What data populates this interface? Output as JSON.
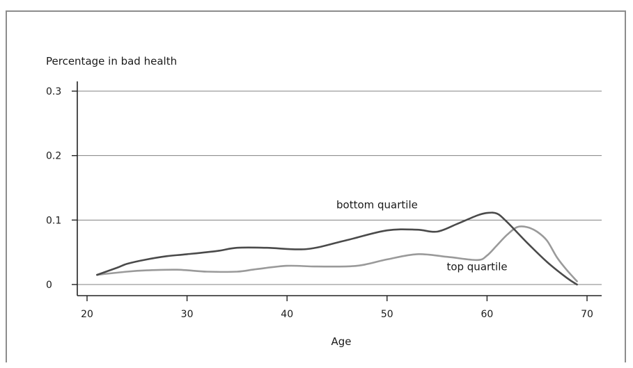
{
  "chart_data": {
    "type": "line",
    "title": "",
    "ylabel": "Percentage in bad health",
    "xlabel": "Age",
    "xlim": [
      19,
      71
    ],
    "ylim": [
      -0.015,
      0.32
    ],
    "xticks": [
      20,
      30,
      40,
      50,
      60,
      70
    ],
    "yticks": [
      0,
      0.1,
      0.2,
      0.3
    ],
    "ytick_labels": [
      "0",
      "0.1",
      "0.2",
      "0.3"
    ],
    "grid": "horizontal",
    "series": [
      {
        "name": "bottom quartile",
        "color": "#4a4a4a",
        "x": [
          21,
          23,
          24,
          26,
          28,
          30,
          33,
          35,
          38,
          42,
          46,
          50,
          53,
          55,
          57,
          59,
          60,
          61,
          62,
          64,
          66,
          68,
          69
        ],
        "y": [
          0.015,
          0.026,
          0.032,
          0.039,
          0.044,
          0.047,
          0.052,
          0.057,
          0.057,
          0.055,
          0.069,
          0.084,
          0.085,
          0.082,
          0.094,
          0.107,
          0.111,
          0.11,
          0.097,
          0.065,
          0.035,
          0.01,
          0.0
        ]
      },
      {
        "name": "top quartile",
        "color": "#9a9a9a",
        "x": [
          21,
          24,
          26,
          29,
          32,
          35,
          37,
          40,
          43,
          47,
          50,
          53,
          56,
          59,
          60,
          61,
          62,
          63,
          64,
          65,
          66,
          67,
          68,
          69
        ],
        "y": [
          0.015,
          0.02,
          0.022,
          0.023,
          0.02,
          0.02,
          0.024,
          0.029,
          0.028,
          0.029,
          0.039,
          0.047,
          0.043,
          0.038,
          0.045,
          0.061,
          0.077,
          0.089,
          0.089,
          0.082,
          0.068,
          0.042,
          0.022,
          0.005
        ]
      }
    ],
    "annotations": [
      {
        "text": "bottom quartile",
        "x": 49,
        "y": 0.118
      },
      {
        "text": "top quartile",
        "x": 59,
        "y": 0.022
      }
    ]
  }
}
